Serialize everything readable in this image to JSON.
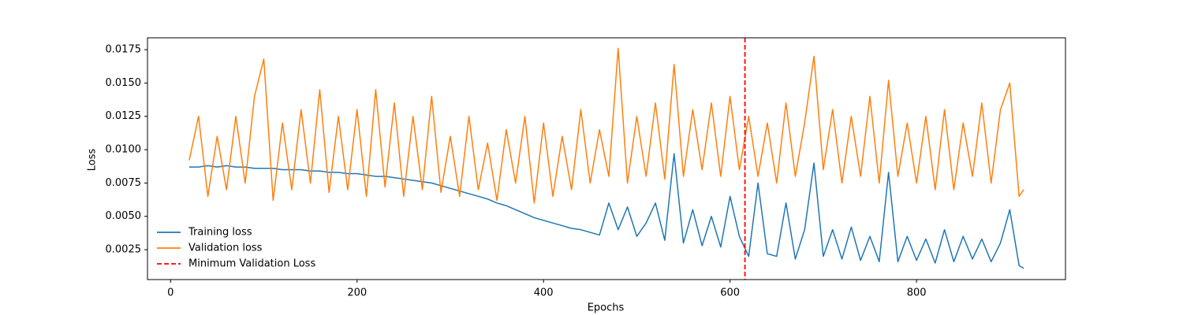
{
  "chart_data": {
    "type": "line",
    "xlabel": "Epochs",
    "ylabel": "Loss",
    "x": [
      20,
      30,
      40,
      50,
      60,
      70,
      80,
      90,
      100,
      110,
      120,
      130,
      140,
      150,
      160,
      170,
      180,
      190,
      200,
      210,
      220,
      230,
      240,
      250,
      260,
      270,
      280,
      290,
      300,
      310,
      320,
      330,
      340,
      350,
      360,
      370,
      380,
      390,
      400,
      410,
      420,
      430,
      440,
      450,
      460,
      470,
      480,
      490,
      500,
      510,
      520,
      530,
      540,
      550,
      560,
      570,
      580,
      590,
      600,
      610,
      620,
      630,
      640,
      650,
      660,
      670,
      680,
      690,
      700,
      710,
      720,
      730,
      740,
      750,
      760,
      770,
      780,
      790,
      800,
      810,
      820,
      830,
      840,
      850,
      860,
      870,
      880,
      890,
      900,
      910,
      915
    ],
    "series": [
      {
        "name": "Training loss",
        "color": "#1f77b4",
        "values": [
          0.0087,
          0.0087,
          0.0088,
          0.0087,
          0.0088,
          0.0087,
          0.0087,
          0.0086,
          0.0086,
          0.0086,
          0.0085,
          0.0085,
          0.0085,
          0.0084,
          0.0084,
          0.0083,
          0.0083,
          0.0082,
          0.0082,
          0.0081,
          0.008,
          0.008,
          0.0079,
          0.0078,
          0.0077,
          0.0076,
          0.0075,
          0.0073,
          0.0071,
          0.0069,
          0.0067,
          0.0065,
          0.0063,
          0.006,
          0.0058,
          0.0055,
          0.0052,
          0.0049,
          0.0047,
          0.0045,
          0.0043,
          0.0041,
          0.004,
          0.0038,
          0.0036,
          0.006,
          0.004,
          0.0057,
          0.0035,
          0.0045,
          0.006,
          0.0032,
          0.0097,
          0.003,
          0.0055,
          0.0028,
          0.005,
          0.0027,
          0.0065,
          0.0035,
          0.002,
          0.0075,
          0.0022,
          0.002,
          0.006,
          0.0018,
          0.004,
          0.009,
          0.002,
          0.004,
          0.0018,
          0.0042,
          0.0017,
          0.0035,
          0.0016,
          0.0083,
          0.0016,
          0.0035,
          0.0017,
          0.0033,
          0.0015,
          0.004,
          0.0016,
          0.0035,
          0.0018,
          0.0033,
          0.0016,
          0.003,
          0.0055,
          0.0013,
          0.0011
        ]
      },
      {
        "name": "Validation loss",
        "color": "#ff7f0e",
        "values": [
          0.0092,
          0.0125,
          0.0065,
          0.011,
          0.007,
          0.0125,
          0.0075,
          0.014,
          0.0168,
          0.0062,
          0.012,
          0.007,
          0.013,
          0.0075,
          0.0145,
          0.0068,
          0.0125,
          0.007,
          0.013,
          0.0065,
          0.0145,
          0.0072,
          0.0135,
          0.0065,
          0.0125,
          0.007,
          0.014,
          0.0068,
          0.011,
          0.0065,
          0.0125,
          0.007,
          0.0105,
          0.0062,
          0.0115,
          0.0075,
          0.0125,
          0.006,
          0.012,
          0.0065,
          0.011,
          0.007,
          0.013,
          0.0075,
          0.0115,
          0.008,
          0.0176,
          0.0075,
          0.0125,
          0.008,
          0.0135,
          0.0078,
          0.0164,
          0.008,
          0.013,
          0.0085,
          0.0135,
          0.008,
          0.014,
          0.0085,
          0.0125,
          0.008,
          0.012,
          0.0075,
          0.0135,
          0.008,
          0.012,
          0.017,
          0.0085,
          0.013,
          0.0075,
          0.0125,
          0.008,
          0.014,
          0.0075,
          0.0152,
          0.008,
          0.012,
          0.0075,
          0.0125,
          0.007,
          0.013,
          0.007,
          0.012,
          0.008,
          0.0135,
          0.0075,
          0.013,
          0.015,
          0.0065,
          0.007
        ]
      }
    ],
    "vlines": [
      {
        "x": 616,
        "name": "Minimum Validation Loss",
        "color": "#ff0000"
      }
    ],
    "xlim": [
      -24.75,
      959.75
    ],
    "xticks": [
      0,
      200,
      400,
      600,
      800
    ],
    "ylim": [
      0.00026,
      0.01839
    ],
    "yticks": [
      0.0025,
      {
        "value": 0.005,
        "label": "0.0050"
      },
      0.0075,
      {
        "value": 0.01,
        "label": "0.0100"
      },
      0.0125,
      {
        "value": 0.015,
        "label": "0.0150"
      },
      0.0175
    ],
    "legend": "lower left"
  }
}
